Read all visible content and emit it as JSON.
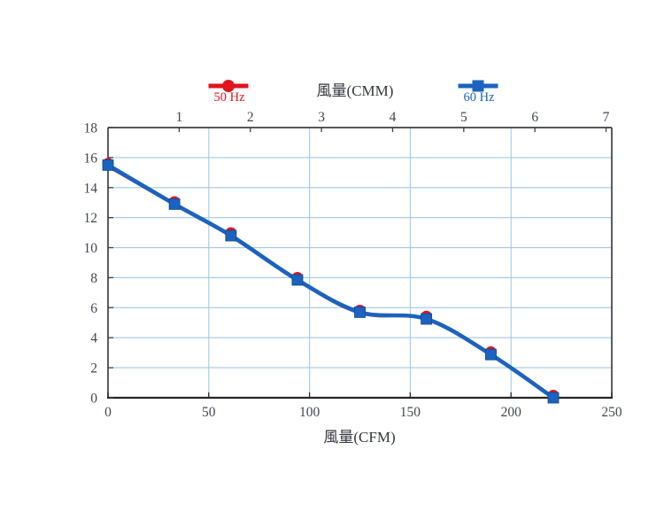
{
  "chart_data": {
    "type": "line",
    "axes": {
      "bottom": {
        "label": "風量(CFM)",
        "ticks": [
          0,
          50,
          100,
          150,
          200,
          250
        ],
        "range": [
          0,
          250
        ]
      },
      "top": {
        "label": "風量(CMM)",
        "ticks": [
          1,
          2,
          3,
          4,
          5,
          6,
          7
        ],
        "cfm_per_cmm": 35.31
      },
      "left": {
        "label": "",
        "ticks": [
          0,
          2,
          4,
          6,
          8,
          10,
          12,
          14,
          16,
          18
        ],
        "range": [
          0,
          18
        ]
      }
    },
    "grid": {
      "vertical_at_cfm": [
        50,
        100,
        150,
        200
      ],
      "horizontal_at": [
        2,
        4,
        6,
        8,
        10,
        12,
        14,
        16
      ]
    },
    "series": [
      {
        "name": "50 Hz",
        "color": "#e11422",
        "marker": "circle",
        "points": [
          [
            0,
            15.5
          ],
          [
            33,
            12.95
          ],
          [
            61,
            10.88
          ],
          [
            94,
            7.9
          ],
          [
            125,
            5.72
          ],
          [
            158,
            5.32
          ],
          [
            190,
            2.95
          ],
          [
            221,
            0.05
          ]
        ]
      },
      {
        "name": "60 Hz",
        "color": "#1b63be",
        "marker": "square",
        "points": [
          [
            0,
            15.5
          ],
          [
            33,
            12.9
          ],
          [
            61,
            10.8
          ],
          [
            94,
            7.85
          ],
          [
            125,
            5.7
          ],
          [
            158,
            5.25
          ],
          [
            190,
            2.88
          ],
          [
            221,
            0
          ]
        ]
      }
    ],
    "legend_position": "top"
  },
  "colors": {
    "grid": "#a3c8e6",
    "axis": "#3f3f3f",
    "axis_bottom": "#262626",
    "tick_text": "#414750"
  }
}
